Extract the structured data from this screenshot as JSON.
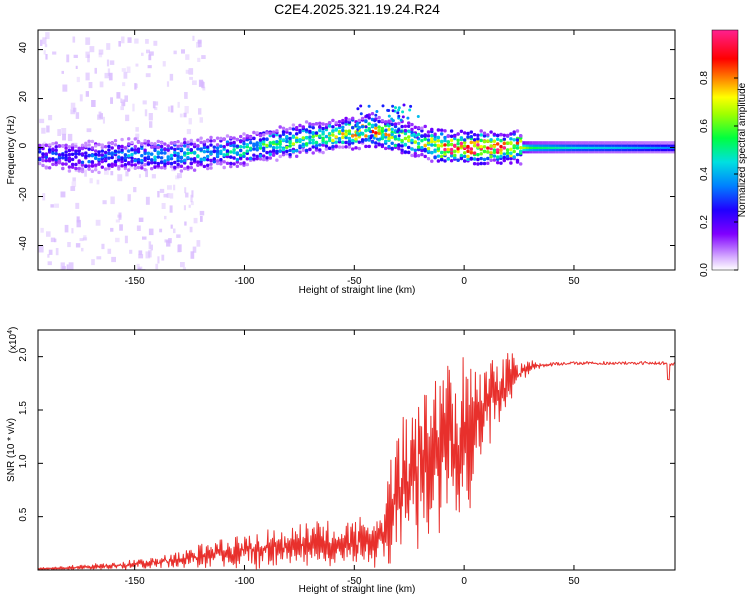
{
  "title": "C2E4.2025.321.19.24.R24",
  "colors": {
    "snr_line": "#e8302c",
    "frame": "#000000"
  },
  "chart_data": [
    {
      "type": "heatmap",
      "xlabel": "Height of straight line (km)",
      "ylabel": "Frequency (Hz)",
      "xlim": [
        -194,
        96
      ],
      "ylim": [
        -50,
        48
      ],
      "x_ticks": [
        -150,
        -100,
        -50,
        0,
        50
      ],
      "y_ticks": [
        40,
        20,
        0,
        -20,
        -40
      ],
      "colorbar": {
        "label": "Normalized spectral amplitude",
        "range": [
          0,
          1
        ],
        "ticks": [
          "0.0",
          "0.2",
          "0.4",
          "0.6",
          "0.8"
        ],
        "colormap": "rainbow (purple-blue-cyan-green-yellow-orange-red-magenta)"
      },
      "ridge": {
        "height_km": [
          -194,
          -170,
          -150,
          -130,
          -110,
          -100,
          -90,
          -80,
          -70,
          -60,
          -50,
          -42,
          -38,
          -30,
          -20,
          -15,
          -10,
          -5,
          0,
          5,
          10,
          20,
          30,
          50,
          70,
          96
        ],
        "frequency_hz": [
          -3,
          -4,
          -3,
          -3,
          -2,
          -1,
          1,
          2,
          4,
          5,
          6,
          7,
          6,
          4,
          2,
          1,
          0,
          0,
          0,
          0,
          0,
          0,
          0,
          0,
          0,
          0
        ],
        "amplitude": [
          0.25,
          0.3,
          0.35,
          0.4,
          0.4,
          0.45,
          0.5,
          0.55,
          0.55,
          0.6,
          0.65,
          0.7,
          0.7,
          0.6,
          0.55,
          0.7,
          0.9,
          0.92,
          0.92,
          0.9,
          0.88,
          0.85,
          0.55,
          0.45,
          0.42,
          0.35
        ]
      }
    },
    {
      "type": "line",
      "xlabel": "Height of straight line (km)",
      "ylabel": "SNR (10 * v/v)",
      "y_multiplier": "(x10",
      "y_multiplier_exp": "4",
      "y_multiplier_close": ")",
      "xlim": [
        -194,
        96
      ],
      "ylim": [
        0,
        2.25
      ],
      "x_ticks": [
        -150,
        -100,
        -50,
        0,
        50
      ],
      "y_ticks": [
        "0.5",
        "1.0",
        "1.5",
        "2.0"
      ],
      "y_tick_values": [
        0.5,
        1.0,
        1.5,
        2.0
      ],
      "series": [
        {
          "x": [
            -194,
            -180,
            -170,
            -160,
            -150,
            -140,
            -130,
            -120,
            -110,
            -100,
            -90,
            -80,
            -70,
            -60,
            -50,
            -45,
            -40,
            -35,
            -30,
            -25,
            -20,
            -15,
            -10,
            -5,
            0,
            5,
            10,
            15,
            20,
            25,
            30,
            35,
            40,
            50,
            60,
            70,
            80,
            90,
            96
          ],
          "y": [
            0.01,
            0.02,
            0.03,
            0.04,
            0.05,
            0.07,
            0.1,
            0.13,
            0.16,
            0.18,
            0.2,
            0.22,
            0.24,
            0.25,
            0.26,
            0.28,
            0.3,
            0.4,
            0.7,
            0.9,
            1.0,
            1.05,
            1.1,
            1.1,
            1.2,
            1.35,
            1.5,
            1.65,
            1.78,
            1.85,
            1.9,
            1.92,
            1.93,
            1.94,
            1.94,
            1.94,
            1.94,
            1.94,
            1.93
          ],
          "noise": [
            0.01,
            0.02,
            0.02,
            0.03,
            0.04,
            0.05,
            0.07,
            0.09,
            0.12,
            0.14,
            0.15,
            0.16,
            0.16,
            0.17,
            0.18,
            0.2,
            0.25,
            0.35,
            0.5,
            0.6,
            0.7,
            0.75,
            0.75,
            0.7,
            0.65,
            0.55,
            0.45,
            0.32,
            0.22,
            0.12,
            0.05,
            0.02,
            0.015,
            0.01,
            0.01,
            0.01,
            0.01,
            0.01,
            0.01
          ]
        }
      ]
    }
  ]
}
